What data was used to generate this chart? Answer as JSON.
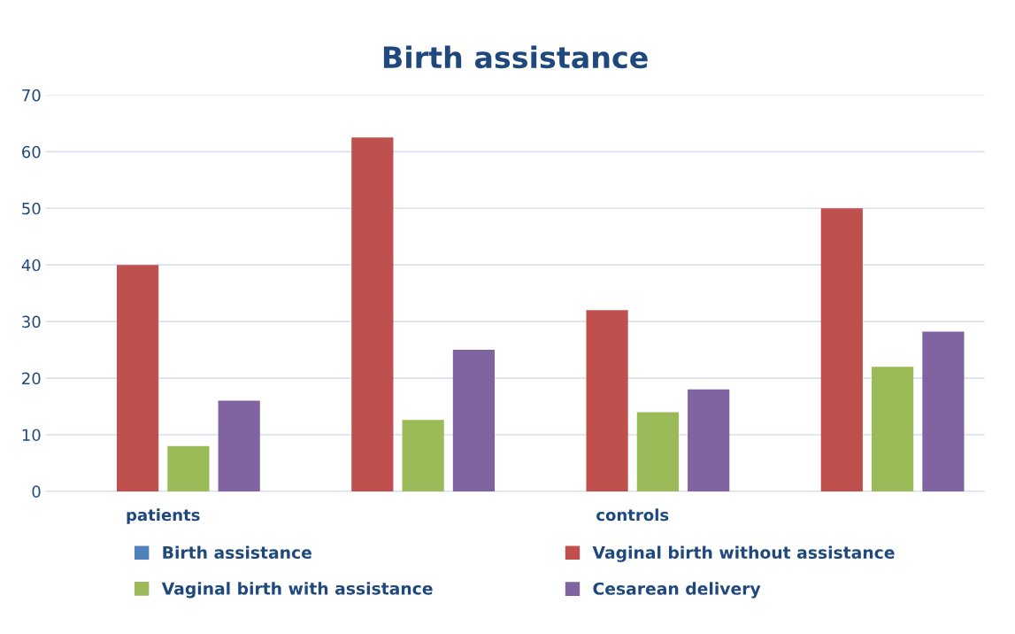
{
  "chart_data": {
    "type": "bar",
    "title": "Birth assistance",
    "categories": [
      "patients",
      null,
      "controls",
      null
    ],
    "series": [
      {
        "name": "Birth assistance",
        "color": "#4f81bd",
        "values": [
          null,
          null,
          null,
          null
        ]
      },
      {
        "name": "Vaginal birth without assistance",
        "color": "#c0504d",
        "values": [
          40,
          62.5,
          32,
          50
        ]
      },
      {
        "name": "Vaginal birth with assistance",
        "color": "#9bbb59",
        "values": [
          8,
          12.6,
          14,
          22
        ]
      },
      {
        "name": "Cesarean delivery",
        "color": "#8064a2",
        "values": [
          16,
          25,
          18,
          28.2
        ]
      }
    ],
    "ylim": [
      0,
      70
    ],
    "yticks": [
      0,
      10,
      20,
      30,
      40,
      50,
      60,
      70
    ],
    "grid": "y",
    "legend": "bottom"
  }
}
